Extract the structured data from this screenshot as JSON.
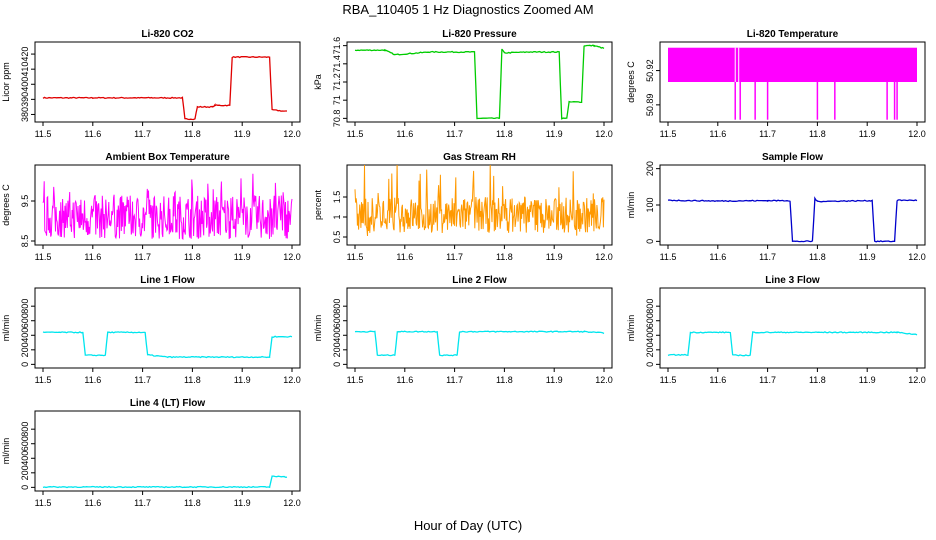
{
  "figure": {
    "title": "RBA_110405  1 Hz Diagnostics Zoomed AM",
    "xlabel": "Hour of Day (UTC)"
  },
  "chart_data": [
    {
      "type": "line",
      "title": "Li-820 CO2",
      "ylabel": "Licor ppm",
      "color": "#e00000",
      "xlim": [
        11.5,
        12.0
      ],
      "ylim": [
        375,
        428
      ],
      "yticks": [
        380,
        390,
        400,
        410,
        420
      ],
      "xticks": [
        11.5,
        11.6,
        11.7,
        11.8,
        11.9,
        12.0
      ],
      "x": [
        11.5,
        11.6,
        11.7,
        11.78,
        11.785,
        11.805,
        11.81,
        11.84,
        11.845,
        11.875,
        11.88,
        11.955,
        11.96,
        11.99
      ],
      "y": [
        391,
        391,
        391,
        391,
        377,
        377,
        385,
        385,
        386,
        386,
        418,
        418,
        383,
        382
      ]
    },
    {
      "type": "line",
      "title": "Li-820 Pressure",
      "ylabel": "kPa",
      "color": "#00cc00",
      "xlim": [
        11.5,
        12.0
      ],
      "ylim": [
        70.76,
        71.64
      ],
      "yticks": [
        70.8,
        71.0,
        71.2,
        71.4,
        71.6
      ],
      "xticks": [
        11.5,
        11.6,
        11.7,
        11.8,
        11.9,
        12.0
      ],
      "x": [
        11.5,
        11.56,
        11.58,
        11.65,
        11.74,
        11.745,
        11.79,
        11.795,
        11.8,
        11.85,
        11.91,
        11.915,
        11.925,
        11.93,
        11.955,
        11.96,
        11.98,
        12.0
      ],
      "y": [
        71.55,
        71.55,
        71.5,
        71.53,
        71.53,
        70.8,
        70.8,
        71.56,
        71.52,
        71.53,
        71.53,
        70.8,
        70.8,
        70.98,
        70.98,
        71.6,
        71.6,
        71.57
      ]
    },
    {
      "type": "line",
      "title": "Li-820 Temperature",
      "ylabel": "degrees C",
      "color": "#ff00ff",
      "xlim": [
        11.5,
        12.0
      ],
      "ylim": [
        50.875,
        50.945
      ],
      "yticks": [
        50.89,
        50.92
      ],
      "xticks": [
        11.5,
        11.6,
        11.7,
        11.8,
        11.9,
        12.0
      ],
      "band": [
        50.91,
        50.94
      ],
      "spikes_x": [
        11.635,
        11.645,
        11.675,
        11.7,
        11.8,
        11.835,
        11.94,
        11.955,
        11.96
      ],
      "spikes_y": 50.877
    },
    {
      "type": "line",
      "title": "Ambient Box Temperature",
      "ylabel": "degrees C",
      "color": "#ff00ff",
      "xlim": [
        11.5,
        12.0
      ],
      "ylim": [
        8.4,
        10.4
      ],
      "yticks": [
        8.5,
        9.5
      ],
      "xticks": [
        11.5,
        11.6,
        11.7,
        11.8,
        11.9,
        12.0
      ],
      "noise": {
        "center": 9.1,
        "amplitude": 0.55,
        "spikes": 0.8
      }
    },
    {
      "type": "line",
      "title": "Gas Stream RH",
      "ylabel": "percent",
      "color": "#ff9900",
      "xlim": [
        11.5,
        12.0
      ],
      "ylim": [
        0.3,
        2.3
      ],
      "yticks": [
        0.5,
        1.0,
        1.5
      ],
      "xticks": [
        11.5,
        11.6,
        11.7,
        11.8,
        11.9,
        12.0
      ],
      "noise": {
        "center": 1.05,
        "amplitude": 0.45,
        "spikes": 0.95
      }
    },
    {
      "type": "line",
      "title": "Sample Flow",
      "ylabel": "ml/min",
      "color": "#0000cc",
      "xlim": [
        11.5,
        12.0
      ],
      "ylim": [
        -10,
        210
      ],
      "yticks": [
        0,
        100,
        200
      ],
      "xticks": [
        11.5,
        11.6,
        11.7,
        11.8,
        11.9,
        12.0
      ],
      "x": [
        11.5,
        11.6,
        11.7,
        11.745,
        11.75,
        11.79,
        11.795,
        11.8,
        11.91,
        11.915,
        11.955,
        11.96,
        12.0
      ],
      "y": [
        113,
        111,
        112,
        112,
        0,
        0,
        118,
        110,
        112,
        0,
        0,
        113,
        113
      ]
    },
    {
      "type": "line",
      "title": "Line 1 Flow",
      "ylabel": "ml/min",
      "color": "#00e5ee",
      "xlim": [
        11.5,
        12.0
      ],
      "ylim": [
        -50,
        1050
      ],
      "yticks": [
        0,
        200,
        400,
        600,
        800
      ],
      "xticks": [
        11.5,
        11.6,
        11.7,
        11.8,
        11.9,
        12.0
      ],
      "x": [
        11.5,
        11.58,
        11.585,
        11.625,
        11.63,
        11.705,
        11.71,
        11.75,
        11.955,
        11.96,
        12.0
      ],
      "y": [
        440,
        440,
        125,
        125,
        440,
        440,
        130,
        100,
        100,
        380,
        380
      ]
    },
    {
      "type": "line",
      "title": "Line 2 Flow",
      "ylabel": "ml/min",
      "color": "#00e5ee",
      "xlim": [
        11.5,
        12.0
      ],
      "ylim": [
        -50,
        1050
      ],
      "yticks": [
        0,
        200,
        400,
        600,
        800
      ],
      "xticks": [
        11.5,
        11.6,
        11.7,
        11.8,
        11.9,
        12.0
      ],
      "x": [
        11.5,
        11.54,
        11.545,
        11.58,
        11.585,
        11.665,
        11.67,
        11.705,
        11.71,
        11.96,
        12.0
      ],
      "y": [
        450,
        450,
        125,
        125,
        450,
        450,
        125,
        125,
        450,
        450,
        430
      ]
    },
    {
      "type": "line",
      "title": "Line 3 Flow",
      "ylabel": "ml/min",
      "color": "#00e5ee",
      "xlim": [
        11.5,
        12.0
      ],
      "ylim": [
        -50,
        1050
      ],
      "yticks": [
        0,
        200,
        400,
        600,
        800
      ],
      "xticks": [
        11.5,
        11.6,
        11.7,
        11.8,
        11.9,
        12.0
      ],
      "x": [
        11.5,
        11.54,
        11.545,
        11.625,
        11.63,
        11.665,
        11.67,
        11.96,
        12.0
      ],
      "y": [
        130,
        130,
        440,
        440,
        125,
        125,
        440,
        440,
        410
      ]
    },
    {
      "type": "line",
      "title": "Line 4 (LT) Flow",
      "ylabel": "ml/min",
      "color": "#00e5ee",
      "xlim": [
        11.5,
        12.0
      ],
      "ylim": [
        -50,
        1050
      ],
      "yticks": [
        0,
        200,
        400,
        600,
        800
      ],
      "xticks": [
        11.5,
        11.6,
        11.7,
        11.8,
        11.9,
        12.0
      ],
      "x": [
        11.5,
        11.955,
        11.96,
        11.985,
        11.99
      ],
      "y": [
        5,
        5,
        150,
        150,
        140
      ]
    }
  ]
}
